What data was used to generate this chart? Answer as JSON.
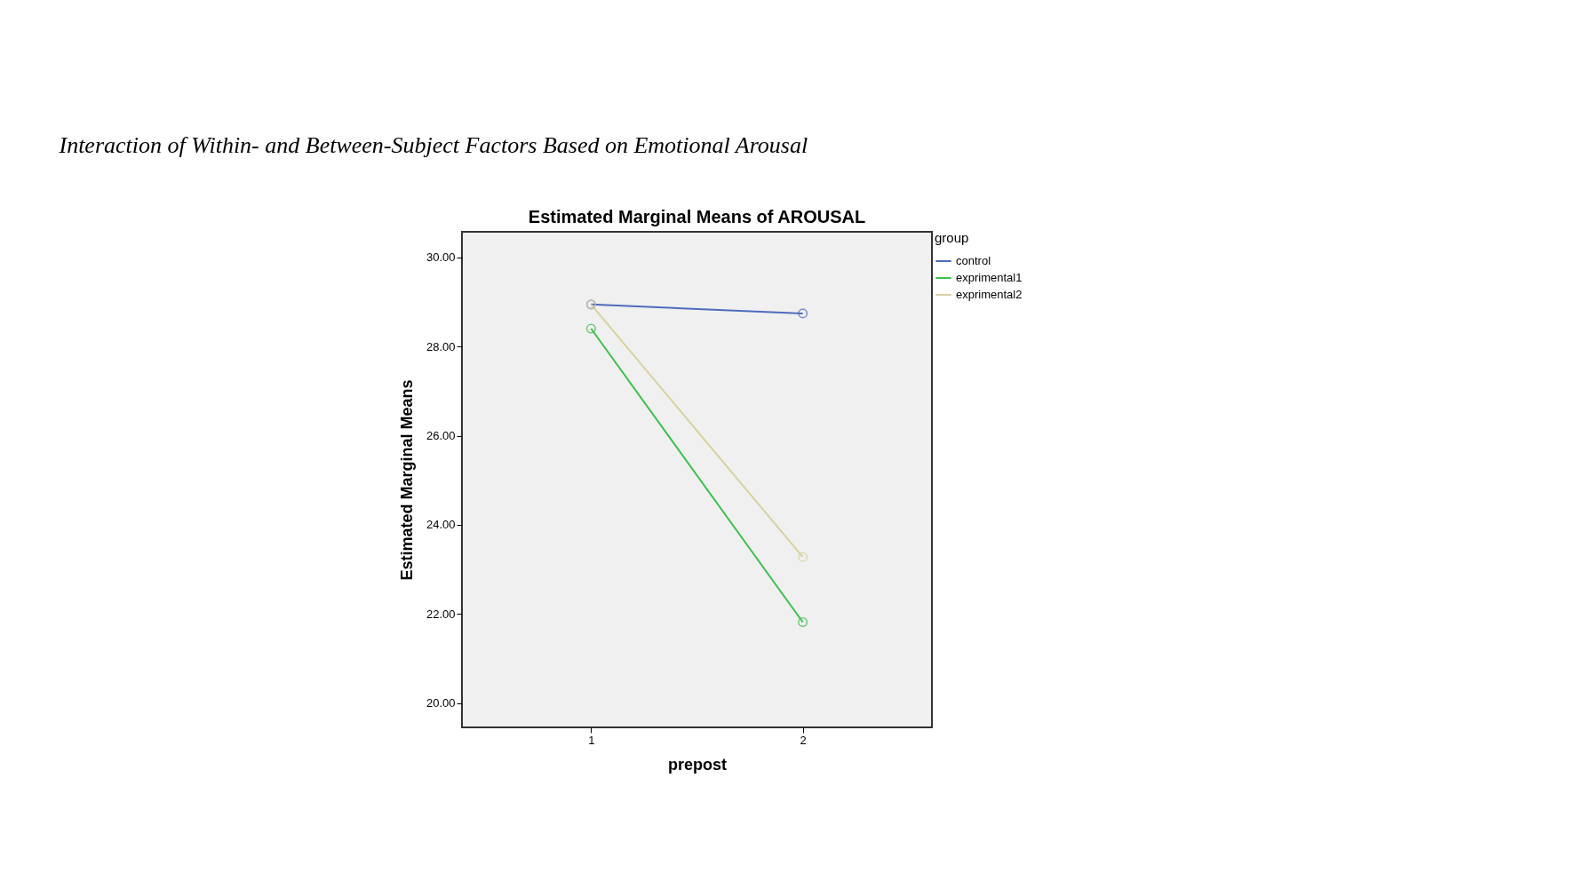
{
  "chart_data": {
    "type": "line",
    "title": "Interaction of Within- and Between-Subject Factors Based on Emotional Arousal",
    "subtitle": "Estimated Marginal Means of AROUSAL",
    "xlabel": "prepost",
    "ylabel": "Estimated Marginal Means",
    "legend_title": "group",
    "categories": [
      "1",
      "2"
    ],
    "series": [
      {
        "name": "control",
        "color": "#4f6bbd",
        "values": [
          28.94,
          28.74
        ]
      },
      {
        "name": "exprimental1",
        "color": "#3cbf4f",
        "values": [
          28.4,
          21.82
        ]
      },
      {
        "name": "exprimental2",
        "color": "#d6d2a0",
        "values": [
          28.94,
          23.28
        ]
      }
    ],
    "ylim": [
      19.46,
      30.57
    ],
    "yticks": [
      {
        "value": 20,
        "label": "20.00"
      },
      {
        "value": 22,
        "label": "22.00"
      },
      {
        "value": 24,
        "label": "24.00"
      },
      {
        "value": 26,
        "label": "26.00"
      },
      {
        "value": 28,
        "label": "28.00"
      },
      {
        "value": 30,
        "label": "30.00"
      }
    ],
    "grid": false,
    "legend": "top right",
    "marker": "circle",
    "line_style": "solid"
  }
}
